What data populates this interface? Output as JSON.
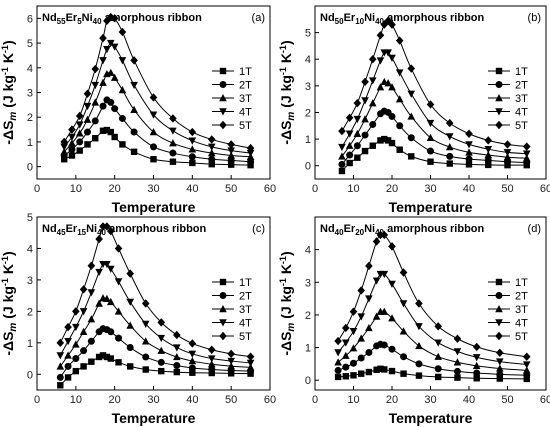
{
  "chart_data": [
    {
      "type": "line",
      "panel_label": "(a)",
      "title": {
        "base1": "Nd",
        "sub1": "55",
        "base2": "Er",
        "sub2": "5",
        "base3": "Ni",
        "sub3": "40",
        "tail": " amorphous ribbon"
      },
      "xlabel": "Temperature",
      "ylabel": {
        "pre": "-ΔS",
        "sub": "m",
        "post": " (J kg",
        "sup1": "-1",
        "mid": " K",
        "sup2": "-1",
        "end": ")"
      },
      "xlim": [
        0,
        60
      ],
      "ylim": [
        -0.5,
        6.5
      ],
      "xticks": [
        "0",
        "10",
        "20",
        "30",
        "40",
        "50",
        "60"
      ],
      "yticks": [
        "0",
        "1",
        "2",
        "3",
        "4",
        "5",
        "6"
      ],
      "x": [
        7,
        9,
        11,
        13,
        15,
        17,
        18,
        19,
        20,
        22,
        25,
        30,
        35,
        40,
        45,
        50,
        55
      ],
      "series": [
        {
          "name": "1T",
          "marker": "square",
          "values": [
            0.3,
            0.45,
            0.65,
            0.9,
            1.15,
            1.45,
            1.48,
            1.4,
            1.2,
            0.9,
            0.6,
            0.3,
            0.2,
            0.15,
            0.1,
            0.08,
            0.06
          ]
        },
        {
          "name": "2T",
          "marker": "circle",
          "values": [
            0.45,
            0.7,
            1.0,
            1.4,
            1.85,
            2.45,
            2.7,
            2.6,
            2.35,
            1.95,
            1.4,
            0.8,
            0.55,
            0.4,
            0.3,
            0.25,
            0.2
          ]
        },
        {
          "name": "3T",
          "marker": "triangle",
          "values": [
            0.6,
            0.95,
            1.35,
            1.9,
            2.6,
            3.4,
            3.75,
            3.8,
            3.6,
            3.1,
            2.3,
            1.4,
            0.95,
            0.7,
            0.55,
            0.45,
            0.4
          ]
        },
        {
          "name": "4T",
          "marker": "tri-down",
          "values": [
            0.8,
            1.2,
            1.7,
            2.45,
            3.3,
            4.3,
            4.75,
            5.0,
            4.85,
            4.3,
            3.3,
            2.1,
            1.45,
            1.05,
            0.8,
            0.65,
            0.55
          ]
        },
        {
          "name": "5T",
          "marker": "diamond",
          "values": [
            1.0,
            1.5,
            2.05,
            2.95,
            3.95,
            5.2,
            5.9,
            6.05,
            6.0,
            5.45,
            4.3,
            2.8,
            1.95,
            1.4,
            1.1,
            0.9,
            0.75
          ]
        }
      ]
    },
    {
      "type": "line",
      "panel_label": "(b)",
      "title": {
        "base1": "Nd",
        "sub1": "50",
        "base2": "Er",
        "sub2": "10",
        "base3": "Ni",
        "sub3": "40",
        "tail": " amorphous ribbon"
      },
      "xlabel": "Temperature",
      "ylabel": {
        "pre": "-ΔS",
        "sub": "m",
        "post": " (J kg",
        "sup1": "-1",
        "mid": " K",
        "sup2": "-1",
        "end": ")"
      },
      "xlim": [
        0,
        60
      ],
      "ylim": [
        -0.5,
        6.0
      ],
      "xticks": [
        "0",
        "10",
        "20",
        "30",
        "40",
        "50",
        "60"
      ],
      "yticks": [
        "0",
        "1",
        "2",
        "3",
        "4",
        "5"
      ],
      "x": [
        7,
        9,
        11,
        13,
        15,
        17,
        18,
        19,
        20,
        22,
        25,
        30,
        35,
        40,
        45,
        50,
        55
      ],
      "series": [
        {
          "name": "1T",
          "marker": "square",
          "values": [
            -0.2,
            0.1,
            0.3,
            0.55,
            0.75,
            0.95,
            1.0,
            0.95,
            0.85,
            0.6,
            0.35,
            0.15,
            0.08,
            0.05,
            0.03,
            0.02,
            0.02
          ]
        },
        {
          "name": "2T",
          "marker": "circle",
          "values": [
            0.05,
            0.4,
            0.75,
            1.15,
            1.55,
            1.95,
            2.05,
            2.0,
            1.85,
            1.5,
            1.05,
            0.55,
            0.35,
            0.25,
            0.2,
            0.15,
            0.12
          ]
        },
        {
          "name": "3T",
          "marker": "triangle",
          "values": [
            0.35,
            0.75,
            1.2,
            1.75,
            2.35,
            2.95,
            3.15,
            3.1,
            2.95,
            2.5,
            1.85,
            1.05,
            0.7,
            0.5,
            0.4,
            0.32,
            0.28
          ]
        },
        {
          "name": "4T",
          "marker": "tri-down",
          "values": [
            0.7,
            1.2,
            1.75,
            2.45,
            3.2,
            3.95,
            4.25,
            4.25,
            4.05,
            3.5,
            2.7,
            1.6,
            1.1,
            0.8,
            0.62,
            0.5,
            0.45
          ]
        },
        {
          "name": "5T",
          "marker": "diamond",
          "values": [
            1.3,
            1.8,
            2.35,
            3.15,
            4.0,
            4.9,
            5.3,
            5.45,
            5.3,
            4.7,
            3.65,
            2.3,
            1.6,
            1.2,
            0.95,
            0.8,
            0.72
          ]
        }
      ]
    },
    {
      "type": "line",
      "panel_label": "(c)",
      "title": {
        "base1": "Nd",
        "sub1": "45",
        "base2": "Er",
        "sub2": "15",
        "base3": "Ni",
        "sub3": "40",
        "tail": " amorphous ribbon"
      },
      "xlabel": "Temperature",
      "ylabel": {
        "pre": "-ΔS",
        "sub": "m",
        "post": " (J kg",
        "sup1": "-1",
        "mid": " K",
        "sup2": "-1",
        "end": ")"
      },
      "xlim": [
        0,
        60
      ],
      "ylim": [
        -0.5,
        5.0
      ],
      "xticks": [
        "0",
        "10",
        "20",
        "30",
        "40",
        "50",
        "60"
      ],
      "yticks": [
        "0",
        "1",
        "2",
        "3",
        "4",
        "5"
      ],
      "x": [
        6,
        8,
        10,
        12,
        14,
        16,
        17,
        18,
        19,
        21,
        24,
        28,
        32,
        36,
        40,
        45,
        50,
        55
      ],
      "series": [
        {
          "name": "1T",
          "marker": "square",
          "values": [
            -0.35,
            -0.1,
            0.1,
            0.25,
            0.4,
            0.55,
            0.6,
            0.55,
            0.5,
            0.38,
            0.25,
            0.15,
            0.1,
            0.07,
            0.05,
            0.04,
            0.03,
            0.02
          ]
        },
        {
          "name": "2T",
          "marker": "circle",
          "values": [
            -0.1,
            0.25,
            0.5,
            0.75,
            1.05,
            1.35,
            1.45,
            1.42,
            1.35,
            1.15,
            0.85,
            0.55,
            0.38,
            0.28,
            0.2,
            0.15,
            0.12,
            0.1
          ]
        },
        {
          "name": "3T",
          "marker": "triangle",
          "values": [
            0.25,
            0.6,
            0.95,
            1.35,
            1.75,
            2.25,
            2.42,
            2.4,
            2.3,
            2.0,
            1.55,
            1.05,
            0.75,
            0.55,
            0.42,
            0.32,
            0.26,
            0.22
          ]
        },
        {
          "name": "4T",
          "marker": "tri-down",
          "values": [
            0.6,
            1.05,
            1.5,
            2.0,
            2.6,
            3.25,
            3.5,
            3.5,
            3.35,
            2.95,
            2.3,
            1.6,
            1.15,
            0.85,
            0.65,
            0.5,
            0.42,
            0.36
          ]
        },
        {
          "name": "5T",
          "marker": "diamond",
          "values": [
            1.0,
            1.5,
            2.0,
            2.7,
            3.45,
            4.3,
            4.7,
            4.7,
            4.55,
            4.0,
            3.2,
            2.25,
            1.65,
            1.25,
            0.98,
            0.78,
            0.65,
            0.56
          ]
        }
      ]
    },
    {
      "type": "line",
      "panel_label": "(d)",
      "title": {
        "base1": "Nd",
        "sub1": "40",
        "base2": "Er",
        "sub2": "20",
        "base3": "Ni",
        "sub3": "40",
        "tail": " amorphous ribbon"
      },
      "xlabel": "Temperature",
      "ylabel": {
        "pre": "-ΔS",
        "sub": "m",
        "post": " (J kg",
        "sup1": "-1",
        "mid": " K",
        "sup2": "-1",
        "end": ")"
      },
      "xlim": [
        0,
        60
      ],
      "ylim": [
        -0.3,
        5.0
      ],
      "xticks": [
        "0",
        "10",
        "20",
        "30",
        "40",
        "50",
        "60"
      ],
      "yticks": [
        "0",
        "1",
        "2",
        "3",
        "4"
      ],
      "x": [
        6,
        8,
        10,
        12,
        14,
        16,
        17,
        18,
        20,
        23,
        27,
        32,
        37,
        42,
        48,
        55
      ],
      "series": [
        {
          "name": "1T",
          "marker": "square",
          "values": [
            0.1,
            0.12,
            0.15,
            0.2,
            0.25,
            0.32,
            0.35,
            0.33,
            0.28,
            0.2,
            0.14,
            0.1,
            0.08,
            0.06,
            0.05,
            0.04
          ]
        },
        {
          "name": "2T",
          "marker": "circle",
          "values": [
            0.3,
            0.4,
            0.52,
            0.68,
            0.85,
            1.05,
            1.1,
            1.08,
            0.95,
            0.72,
            0.5,
            0.35,
            0.27,
            0.22,
            0.18,
            0.15
          ]
        },
        {
          "name": "3T",
          "marker": "triangle",
          "values": [
            0.55,
            0.75,
            0.98,
            1.28,
            1.6,
            1.95,
            2.1,
            2.1,
            1.9,
            1.5,
            1.05,
            0.72,
            0.55,
            0.44,
            0.36,
            0.3
          ]
        },
        {
          "name": "4T",
          "marker": "tri-down",
          "values": [
            0.85,
            1.15,
            1.5,
            1.95,
            2.5,
            3.05,
            3.25,
            3.25,
            2.95,
            2.35,
            1.65,
            1.15,
            0.88,
            0.7,
            0.57,
            0.48
          ]
        },
        {
          "name": "5T",
          "marker": "diamond",
          "values": [
            1.2,
            1.6,
            2.1,
            2.75,
            3.5,
            4.25,
            4.45,
            4.45,
            4.1,
            3.3,
            2.35,
            1.65,
            1.27,
            1.02,
            0.84,
            0.72
          ]
        }
      ]
    }
  ]
}
